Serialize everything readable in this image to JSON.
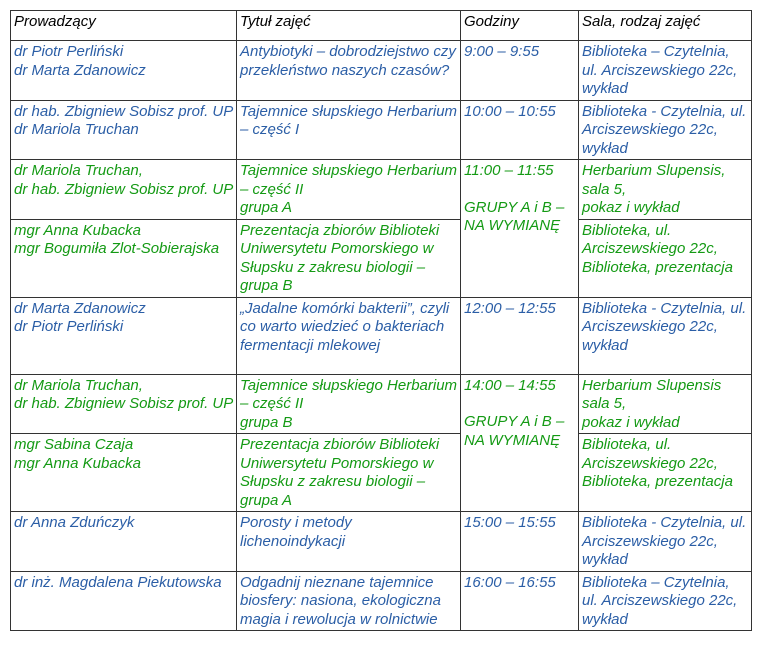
{
  "colors": {
    "blue": "#2b5ea6",
    "green": "#149a14",
    "header": "#000000"
  },
  "headers": [
    "Prowadzący",
    "Tytuł zajęć",
    "Godziny",
    "Sala, rodzaj zajęć"
  ],
  "rows": {
    "r1": {
      "lecturers": [
        "dr Piotr Perliński",
        "dr Marta Zdanowicz"
      ],
      "title": "Antybiotyki – dobrodziejstwo czy przekleństwo naszych czasów?",
      "hours": "9:00 – 9:55",
      "room": "Biblioteka – Czytelnia, ul. Arciszewskiego 22c, wykład"
    },
    "r2": {
      "lecturers": [
        "dr hab. Zbigniew Sobisz prof. UP",
        "dr Mariola Truchan"
      ],
      "title": "Tajemnice słupskiego Herbarium –  część I",
      "hours": "10:00 – 10:55",
      "room": "Biblioteka - Czytelnia, ul. Arciszewskiego 22c, wykład"
    },
    "r3": {
      "lecturers": [
        "dr Mariola Truchan,",
        "dr hab. Zbigniew Sobisz prof. UP"
      ],
      "title": "Tajemnice słupskiego Herbarium – część II",
      "group": "grupa A",
      "hours": "11:00 – 11:55",
      "swap_note": "GRUPY A i B – NA WYMIANĘ",
      "room": [
        "Herbarium Slupensis,",
        "sala 5,",
        "pokaz i wykład"
      ]
    },
    "r4": {
      "lecturers": [
        "mgr Anna Kubacka",
        "mgr Bogumiła Zlot-Sobierajska"
      ],
      "title": "Prezentacja zbiorów Biblioteki Uniwersytetu Pomorskiego w Słupsku  z zakresu biologii – grupa B",
      "room": "Biblioteka, ul. Arciszewskiego 22c, Biblioteka, prezentacja"
    },
    "r5": {
      "lecturers": [
        "dr Marta Zdanowicz",
        "dr Piotr Perliński"
      ],
      "title": "„Jadalne komórki bakterii”, czyli co warto wiedzieć o bakteriach fermentacji mlekowej",
      "hours": "12:00 – 12:55",
      "room": "Biblioteka - Czytelnia, ul. Arciszewskiego 22c, wykład"
    },
    "r6": {
      "lecturers": [
        "dr Mariola Truchan,",
        "dr hab. Zbigniew Sobisz prof. UP"
      ],
      "title": "Tajemnice słupskiego Herbarium  – część II",
      "group": "grupa B",
      "hours": "14:00 – 14:55",
      "swap_note": "GRUPY A i B – NA WYMIANĘ",
      "room": [
        "Herbarium Slupensis",
        "sala 5,",
        "pokaz i wykład"
      ]
    },
    "r7": {
      "lecturers": [
        "mgr Sabina Czaja",
        "mgr Anna Kubacka"
      ],
      "title": "Prezentacja zbiorów Biblioteki Uniwersytetu Pomorskiego w Słupsku  z zakresu biologii – grupa A",
      "room": "Biblioteka, ul. Arciszewskiego 22c, Biblioteka, prezentacja"
    },
    "r8": {
      "lecturers": [
        "dr Anna Zduńczyk"
      ],
      "title": "Porosty i metody lichenoindykacji",
      "hours": "15:00 – 15:55",
      "room": "Biblioteka  - Czytelnia, ul. Arciszewskiego 22c, wykład"
    },
    "r9": {
      "lecturers": [
        "dr inż. Magdalena Piekutowska"
      ],
      "title": "Odgadnij nieznane tajemnice biosfery: nasiona, ekologiczna magia i rewolucja w rolnictwie",
      "hours": "16:00 – 16:55",
      "room": "Biblioteka – Czytelnia, ul. Arciszewskiego 22c, wykład"
    }
  }
}
